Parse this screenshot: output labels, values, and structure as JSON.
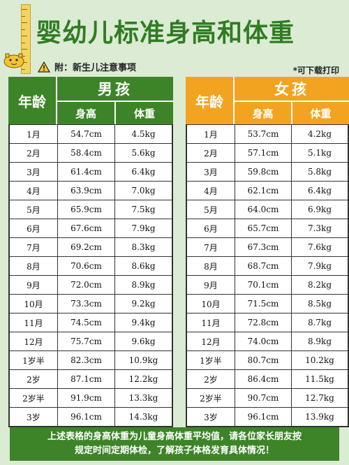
{
  "header": {
    "title": "婴幼儿标准身高和体重",
    "note": "附：新生儿注意事项",
    "print_note": "*可下载打印"
  },
  "colors": {
    "background": "#dcebd4",
    "boy_accent": "#3d8428",
    "girl_accent": "#f2a420",
    "title_color": "#2f7d22"
  },
  "boys": {
    "age_label": "年龄",
    "gender_label": "男孩",
    "height_label": "身高",
    "weight_label": "体重",
    "rows": [
      {
        "age": "1月",
        "height": "54.7cm",
        "weight": "4.5kg"
      },
      {
        "age": "2月",
        "height": "58.4cm",
        "weight": "5.6kg"
      },
      {
        "age": "3月",
        "height": "61.4cm",
        "weight": "6.4kg"
      },
      {
        "age": "4月",
        "height": "63.9cm",
        "weight": "7.0kg"
      },
      {
        "age": "5月",
        "height": "65.9cm",
        "weight": "7.5kg"
      },
      {
        "age": "6月",
        "height": "67.6cm",
        "weight": "7.9kg"
      },
      {
        "age": "7月",
        "height": "69.2cm",
        "weight": "8.3kg"
      },
      {
        "age": "8月",
        "height": "70.6cm",
        "weight": "8.6kg"
      },
      {
        "age": "9月",
        "height": "72.0cm",
        "weight": "8.9kg"
      },
      {
        "age": "10月",
        "height": "73.3cm",
        "weight": "9.2kg"
      },
      {
        "age": "11月",
        "height": "74.5cm",
        "weight": "9.4kg"
      },
      {
        "age": "12月",
        "height": "75.7cm",
        "weight": "9.6kg"
      },
      {
        "age": "1岁半",
        "height": "82.3cm",
        "weight": "10.9kg"
      },
      {
        "age": "2岁",
        "height": "87.1cm",
        "weight": "12.2kg"
      },
      {
        "age": "2岁半",
        "height": "91.9cm",
        "weight": "13.3kg"
      },
      {
        "age": "3岁",
        "height": "96.1cm",
        "weight": "14.3kg"
      }
    ]
  },
  "girls": {
    "age_label": "年龄",
    "gender_label": "女孩",
    "height_label": "身高",
    "weight_label": "体重",
    "rows": [
      {
        "age": "1月",
        "height": "53.7cm",
        "weight": "4.2kg"
      },
      {
        "age": "2月",
        "height": "57.1cm",
        "weight": "5.1kg"
      },
      {
        "age": "3月",
        "height": "59.8cm",
        "weight": "5.8kg"
      },
      {
        "age": "4月",
        "height": "62.1cm",
        "weight": "6.4kg"
      },
      {
        "age": "5月",
        "height": "64.0cm",
        "weight": "6.9kg"
      },
      {
        "age": "6月",
        "height": "65.7cm",
        "weight": "7.3kg"
      },
      {
        "age": "7月",
        "height": "67.3cm",
        "weight": "7.6kg"
      },
      {
        "age": "8月",
        "height": "68.7cm",
        "weight": "7.9kg"
      },
      {
        "age": "9月",
        "height": "70.1cm",
        "weight": "8.2kg"
      },
      {
        "age": "10月",
        "height": "71.5cm",
        "weight": "8.5kg"
      },
      {
        "age": "11月",
        "height": "72.8cm",
        "weight": "8.7kg"
      },
      {
        "age": "12月",
        "height": "74.0cm",
        "weight": "8.9kg"
      },
      {
        "age": "1岁半",
        "height": "80.7cm",
        "weight": "10.2kg"
      },
      {
        "age": "2岁",
        "height": "86.4cm",
        "weight": "11.5kg"
      },
      {
        "age": "2岁半",
        "height": "90.7cm",
        "weight": "12.7kg"
      },
      {
        "age": "3岁",
        "height": "96.1cm",
        "weight": "13.9kg"
      }
    ]
  },
  "footer": {
    "line1": "上述表格的身高体重为儿童身高体重平均值，请各位家长朋友按",
    "line2": "规定时间定期体检，了解孩子体格发育具体情况！"
  }
}
